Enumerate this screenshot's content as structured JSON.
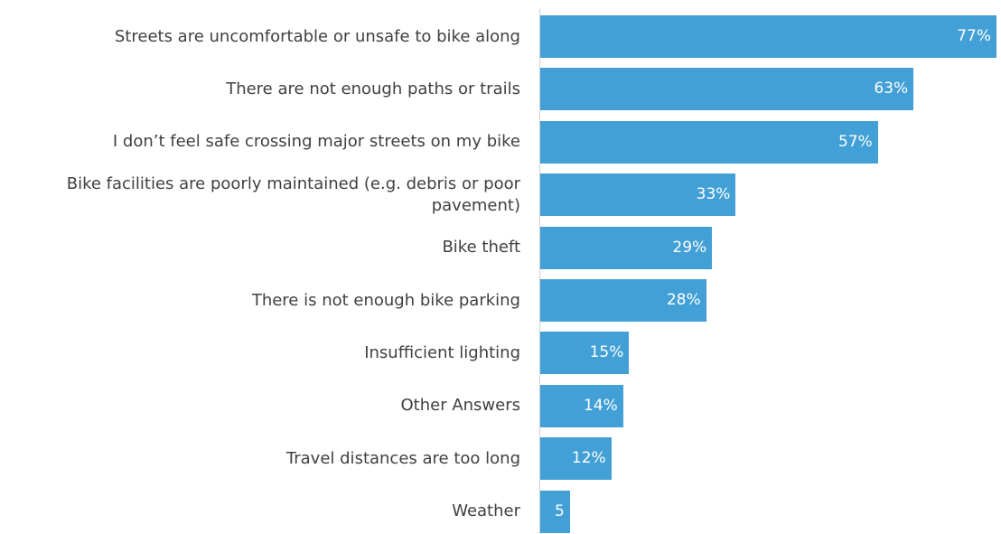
{
  "chart_data": {
    "type": "bar",
    "orientation": "horizontal",
    "categories": [
      "Streets are uncomfortable or unsafe to bike along",
      "There are not enough paths or trails",
      "I don’t feel safe crossing major streets on my bike",
      "Bike facilities are poorly maintained (e.g. debris or poor pavement)",
      "Bike theft",
      "There is not enough bike parking",
      "Insufficient lighting",
      "Other Answers",
      "Travel distances are too long",
      "Weather"
    ],
    "values": [
      77,
      63,
      57,
      33,
      29,
      28,
      15,
      14,
      12,
      5
    ],
    "value_labels": [
      "77%",
      "63%",
      "57%",
      "33%",
      "29%",
      "28%",
      "15%",
      "14%",
      "12%",
      "5"
    ],
    "color": "#42a0d6"
  }
}
